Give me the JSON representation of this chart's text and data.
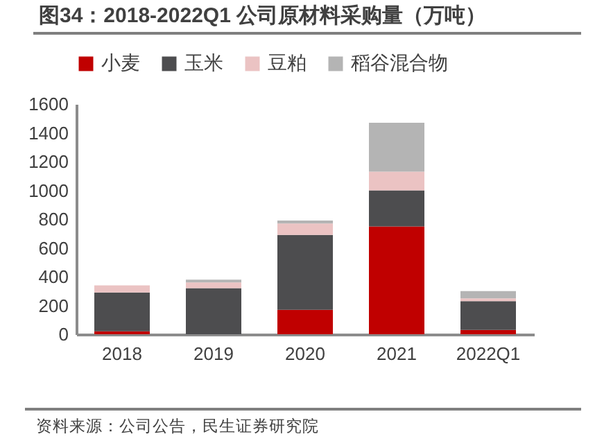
{
  "chart_data": {
    "type": "bar",
    "title": "图34：2018-2022Q1 公司原材料采购量（万吨）",
    "categories": [
      "2018",
      "2019",
      "2020",
      "2021",
      "2022Q1"
    ],
    "stacked": true,
    "series": [
      {
        "name": "小麦",
        "color": "#c00000",
        "values": [
          20,
          0,
          170,
          750,
          30
        ]
      },
      {
        "name": "玉米",
        "color": "#4d4d4f",
        "values": [
          270,
          320,
          520,
          250,
          200
        ]
      },
      {
        "name": "豆粕",
        "color": "#ebc3c3",
        "values": [
          50,
          40,
          80,
          130,
          20
        ]
      },
      {
        "name": "稻谷混合物",
        "color": "#b4b4b4",
        "values": [
          0,
          20,
          20,
          340,
          50
        ]
      }
    ],
    "ylim": [
      0,
      1600
    ],
    "yticks": [
      0,
      200,
      400,
      600,
      800,
      1000,
      1200,
      1400,
      1600
    ],
    "grid": false,
    "legend": "top",
    "annotations": [
      "资料来源：公司公告，民生证券研究院"
    ]
  }
}
